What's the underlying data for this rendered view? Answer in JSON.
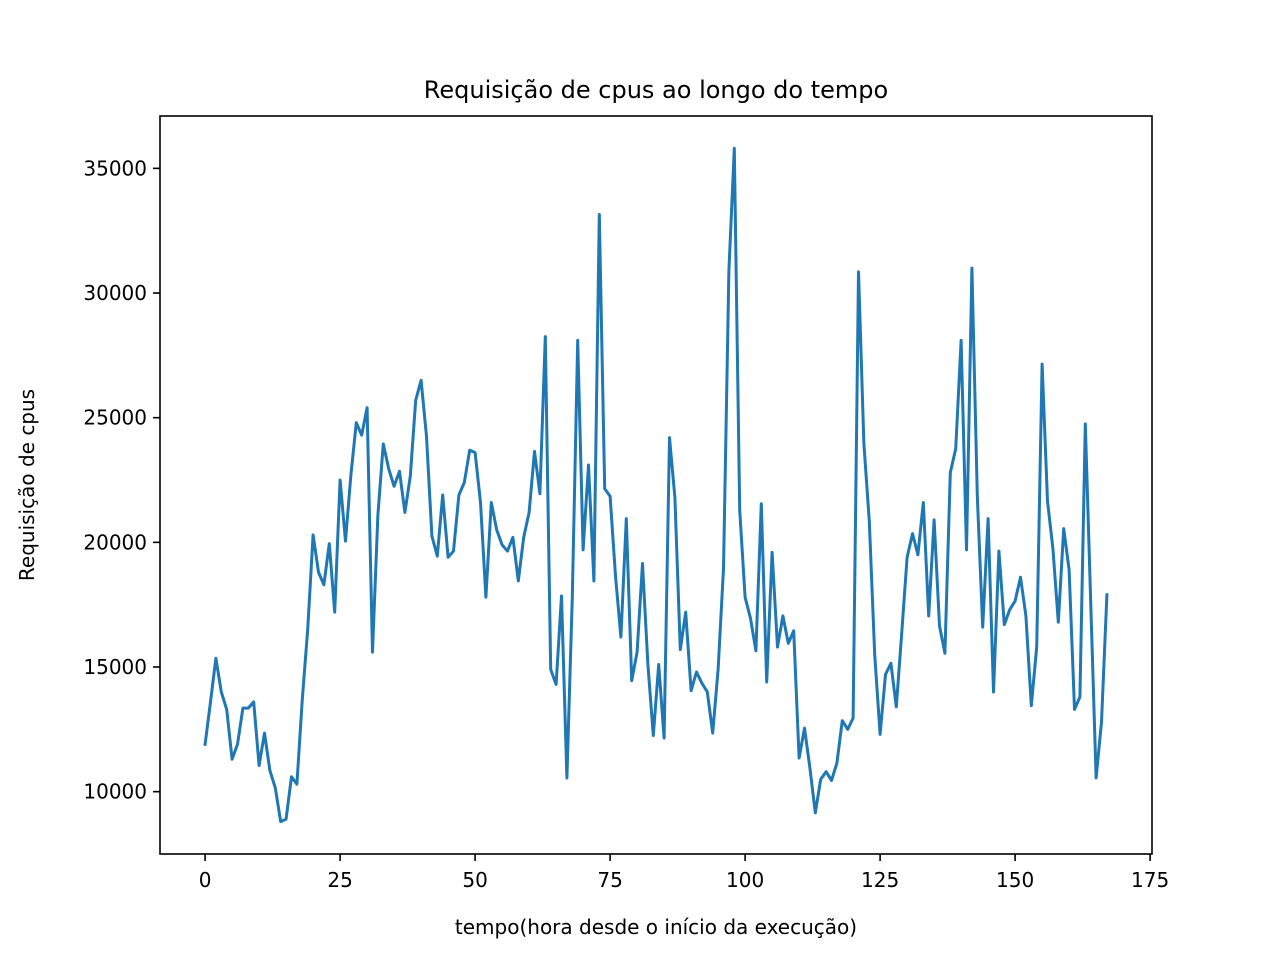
{
  "chart_data": {
    "type": "line",
    "title": "Requisição de cpus ao longo do tempo",
    "xlabel": "tempo(hora desde o início da execução)",
    "ylabel": "Requisição de cpus",
    "xlim": [
      -8.35,
      175.35
    ],
    "ylim": [
      7500,
      37100
    ],
    "xticks": [
      0,
      25,
      50,
      75,
      100,
      125,
      150,
      175
    ],
    "yticks": [
      10000,
      15000,
      20000,
      25000,
      30000,
      35000
    ],
    "grid": false,
    "line_color": "#1f77b4",
    "series": [
      {
        "x": [
          0,
          1,
          2,
          3,
          4,
          5,
          6,
          7,
          8,
          9,
          10,
          11,
          12,
          13,
          14,
          15,
          16,
          17,
          18,
          19,
          20,
          21,
          22,
          23,
          24,
          25,
          26,
          27,
          28,
          29,
          30,
          31,
          32,
          33,
          34,
          35,
          36,
          37,
          38,
          39,
          40,
          41,
          42,
          43,
          44,
          45,
          46,
          47,
          48,
          49,
          50,
          51,
          52,
          53,
          54,
          55,
          56,
          57,
          58,
          59,
          60,
          61,
          62,
          63,
          64,
          65,
          66,
          67,
          68,
          69,
          70,
          71,
          72,
          73,
          74,
          75,
          76,
          77,
          78,
          79,
          80,
          81,
          82,
          83,
          84,
          85,
          86,
          87,
          88,
          89,
          90,
          91,
          92,
          93,
          94,
          95,
          96,
          97,
          98,
          99,
          100,
          101,
          102,
          103,
          104,
          105,
          106,
          107,
          108,
          109,
          110,
          111,
          112,
          113,
          114,
          115,
          116,
          117,
          118,
          119,
          120,
          121,
          122,
          123,
          124,
          125,
          126,
          127,
          128,
          129,
          130,
          131,
          132,
          133,
          134,
          135,
          136,
          137,
          138,
          139,
          140,
          141,
          142,
          143,
          144,
          145,
          146,
          147,
          148,
          149,
          150,
          151,
          152,
          153,
          154,
          155,
          156,
          157,
          158,
          159,
          160,
          161,
          162,
          163,
          164,
          165,
          166,
          167
        ],
        "values": [
          11900,
          13600,
          15350,
          14000,
          13300,
          11300,
          11900,
          13350,
          13350,
          13600,
          11050,
          12350,
          10850,
          10150,
          8800,
          8900,
          10600,
          10300,
          13700,
          16500,
          20300,
          18800,
          18300,
          19950,
          17200,
          22500,
          20050,
          22700,
          24800,
          24300,
          25400,
          15600,
          21100,
          23950,
          22950,
          22250,
          22850,
          21200,
          22650,
          25700,
          26500,
          24250,
          20250,
          19450,
          21900,
          19400,
          19650,
          21900,
          22400,
          23700,
          23600,
          21600,
          17800,
          21600,
          20500,
          19900,
          19650,
          20200,
          18450,
          20200,
          21200,
          23650,
          21950,
          28250,
          14900,
          14300,
          17850,
          10550,
          17800,
          28100,
          19700,
          23100,
          18450,
          33150,
          22150,
          21850,
          18650,
          16200,
          20950,
          14450,
          15600,
          19150,
          15100,
          12250,
          15100,
          12150,
          24200,
          21800,
          15700,
          17200,
          14050,
          14800,
          14350,
          14000,
          12350,
          14900,
          18950,
          30900,
          35800,
          21300,
          17800,
          16950,
          15650,
          21550,
          14400,
          19600,
          15800,
          17050,
          15950,
          16450,
          11350,
          12550,
          10950,
          9150,
          10500,
          10800,
          10450,
          11150,
          12850,
          12500,
          12950,
          30850,
          23950,
          20850,
          15500,
          12300,
          14700,
          15150,
          13400,
          16350,
          19400,
          20350,
          19500,
          21600,
          17050,
          20900,
          16650,
          15550,
          22800,
          23750,
          28100,
          19700,
          31000,
          21850,
          16600,
          20950,
          14000,
          19650,
          16700,
          17300,
          17650,
          18600,
          17050,
          13450,
          15800,
          27150,
          21650,
          19750,
          16800,
          20550,
          18900,
          13300,
          13800,
          24750,
          17600,
          10550,
          12800,
          17900
        ]
      }
    ]
  }
}
